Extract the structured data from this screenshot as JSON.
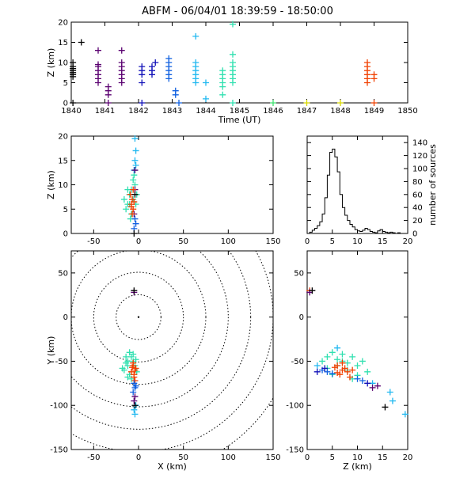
{
  "title": "ABFM - 06/04/01 18:39:59 - 18:50:00",
  "colors": {
    "black": "#000000",
    "purple": "#5a0070",
    "darkblue": "#1010b8",
    "blue": "#1060e0",
    "cyan": "#20b8f0",
    "teal": "#30e0b0",
    "green": "#40e070",
    "yellow": "#d8d800",
    "orange": "#f04000",
    "axis": "#000000"
  },
  "chart_data": [
    {
      "id": "time-height",
      "type": "scatter",
      "xlabel": "Time (UT)",
      "ylabel": "Z (km)",
      "xlim": [
        1840,
        1850
      ],
      "ylim": [
        0,
        20
      ],
      "xticks": [
        "1840",
        "1841",
        "1842",
        "1843",
        "1844",
        "1845",
        "1846",
        "1847",
        "1848",
        "1849",
        "1850"
      ],
      "yticks": [
        "0",
        "5",
        "10",
        "15",
        "20"
      ],
      "series": [
        {
          "color": "black",
          "points": [
            [
              1840.05,
              7
            ],
            [
              1840.05,
              8
            ],
            [
              1840.05,
              8.5
            ],
            [
              1840.05,
              9
            ],
            [
              1840.05,
              7.5
            ],
            [
              1840.05,
              6.5
            ],
            [
              1840.05,
              10
            ],
            [
              1840.05,
              0
            ],
            [
              1840.3,
              15
            ]
          ]
        },
        {
          "color": "purple",
          "points": [
            [
              1840.8,
              6
            ],
            [
              1840.8,
              7
            ],
            [
              1840.8,
              8
            ],
            [
              1840.8,
              9
            ],
            [
              1840.8,
              9.5
            ],
            [
              1840.8,
              5
            ],
            [
              1840.8,
              13
            ],
            [
              1841.1,
              3
            ],
            [
              1841.1,
              4
            ],
            [
              1841.1,
              2
            ],
            [
              1841.1,
              0
            ],
            [
              1841.5,
              6
            ],
            [
              1841.5,
              7
            ],
            [
              1841.5,
              8
            ],
            [
              1841.5,
              9
            ],
            [
              1841.5,
              10
            ],
            [
              1841.5,
              5
            ],
            [
              1841.5,
              13
            ]
          ]
        },
        {
          "color": "darkblue",
          "points": [
            [
              1842.1,
              7
            ],
            [
              1842.1,
              8
            ],
            [
              1842.1,
              9
            ],
            [
              1842.1,
              5
            ],
            [
              1842.1,
              0
            ],
            [
              1842.4,
              8
            ],
            [
              1842.4,
              9
            ],
            [
              1842.4,
              7
            ],
            [
              1842.5,
              10
            ]
          ]
        },
        {
          "color": "blue",
          "points": [
            [
              1842.9,
              6
            ],
            [
              1842.9,
              7
            ],
            [
              1842.9,
              8
            ],
            [
              1842.9,
              9
            ],
            [
              1842.9,
              10
            ],
            [
              1842.9,
              11
            ],
            [
              1843.1,
              3
            ],
            [
              1843.1,
              2
            ],
            [
              1843.2,
              0
            ]
          ]
        },
        {
          "color": "cyan",
          "points": [
            [
              1843.7,
              6
            ],
            [
              1843.7,
              7
            ],
            [
              1843.7,
              8
            ],
            [
              1843.7,
              9
            ],
            [
              1843.7,
              10
            ],
            [
              1843.7,
              5
            ],
            [
              1843.7,
              16.5
            ],
            [
              1844,
              5
            ],
            [
              1844,
              1
            ]
          ]
        },
        {
          "color": "teal",
          "points": [
            [
              1844.5,
              4
            ],
            [
              1844.5,
              5
            ],
            [
              1844.5,
              6
            ],
            [
              1844.5,
              7
            ],
            [
              1844.5,
              8
            ],
            [
              1844.5,
              2
            ],
            [
              1844.8,
              5
            ],
            [
              1844.8,
              6
            ],
            [
              1844.8,
              7
            ],
            [
              1844.8,
              8
            ],
            [
              1844.8,
              9
            ],
            [
              1844.8,
              10
            ],
            [
              1844.8,
              12
            ],
            [
              1844.8,
              19.5
            ],
            [
              1844.8,
              0
            ]
          ]
        },
        {
          "color": "green",
          "points": [
            [
              1846,
              0
            ]
          ]
        },
        {
          "color": "yellow",
          "points": [
            [
              1847,
              0
            ],
            [
              1848,
              0
            ]
          ]
        },
        {
          "color": "orange",
          "points": [
            [
              1848.8,
              5
            ],
            [
              1848.8,
              6
            ],
            [
              1848.8,
              7
            ],
            [
              1848.8,
              8
            ],
            [
              1848.8,
              9
            ],
            [
              1848.8,
              10
            ],
            [
              1849,
              6
            ],
            [
              1849,
              7
            ],
            [
              1849,
              0
            ]
          ]
        }
      ]
    },
    {
      "id": "x-z",
      "type": "scatter",
      "xlabel": "",
      "ylabel": "Z (km)",
      "xlim": [
        -75,
        150
      ],
      "ylim": [
        0,
        20
      ],
      "xticks": [
        "-50",
        "0",
        "50",
        "100",
        "150"
      ],
      "yticks": [
        "0",
        "5",
        "10",
        "15",
        "20"
      ],
      "series": [
        {
          "color": "teal",
          "points": [
            [
              -12,
              6
            ],
            [
              -10,
              8
            ],
            [
              -8,
              9
            ],
            [
              -6,
              7
            ],
            [
              -14,
              5
            ],
            [
              -4,
              10
            ],
            [
              -12,
              9
            ],
            [
              -8,
              4
            ],
            [
              -10,
              6
            ],
            [
              -6,
              11
            ],
            [
              -2,
              8
            ],
            [
              -16,
              7
            ],
            [
              -3,
              6
            ],
            [
              -9,
              3
            ],
            [
              -5,
              12
            ]
          ]
        },
        {
          "color": "cyan",
          "points": [
            [
              -4,
              15
            ],
            [
              -3,
              17
            ],
            [
              -4,
              19.5
            ],
            [
              -5,
              13
            ],
            [
              -3,
              14
            ]
          ]
        },
        {
          "color": "blue",
          "points": [
            [
              -4,
              3
            ],
            [
              -3,
              2
            ],
            [
              -5,
              1
            ]
          ]
        },
        {
          "color": "purple",
          "points": [
            [
              -4,
              9
            ],
            [
              -5,
              4
            ],
            [
              -4,
              13
            ]
          ]
        },
        {
          "color": "orange",
          "points": [
            [
              -8,
              6
            ],
            [
              -7,
              7
            ],
            [
              -6,
              5
            ],
            [
              -9,
              8
            ],
            [
              -5,
              6.5
            ],
            [
              -7,
              4
            ],
            [
              -6,
              9
            ],
            [
              -8,
              5.5
            ]
          ]
        },
        {
          "color": "black",
          "points": [
            [
              -4,
              8
            ],
            [
              -5,
              0
            ]
          ]
        }
      ]
    },
    {
      "id": "histogram",
      "type": "histogram",
      "ylabel": "number of sources",
      "xlim": [
        0,
        20
      ],
      "ylim": [
        0,
        150
      ],
      "xticks": [
        "0",
        "5",
        "10",
        "15",
        "20"
      ],
      "yticks": [
        "0",
        "20",
        "40",
        "60",
        "80",
        "100",
        "120",
        "140"
      ],
      "bin_width": 0.5,
      "values": [
        0,
        2,
        5,
        8,
        12,
        18,
        30,
        55,
        90,
        125,
        130,
        118,
        95,
        60,
        40,
        28,
        20,
        14,
        10,
        6,
        4,
        3,
        5,
        8,
        6,
        3,
        2,
        1,
        4,
        6,
        3,
        2,
        1,
        2,
        1,
        0,
        1,
        0,
        0,
        0
      ]
    },
    {
      "id": "plan-view",
      "type": "scatter",
      "xlabel": "X (km)",
      "ylabel": "Y (km)",
      "xlim": [
        -75,
        150
      ],
      "ylim": [
        -150,
        75
      ],
      "xticks": [
        "-50",
        "0",
        "50",
        "100",
        "150"
      ],
      "yticks": [
        "-150",
        "-100",
        "-50",
        "0",
        "50"
      ],
      "range_rings_km": [
        25,
        50,
        75,
        100,
        125,
        150,
        175
      ],
      "series": [
        {
          "color": "teal",
          "points": [
            [
              -14,
              -45
            ],
            [
              -10,
              -40
            ],
            [
              -12,
              -55
            ],
            [
              -6,
              -50
            ],
            [
              -16,
              -60
            ],
            [
              -8,
              -45
            ],
            [
              -4,
              -55
            ],
            [
              -12,
              -50
            ],
            [
              -10,
              -65
            ],
            [
              -3,
              -48
            ],
            [
              -14,
              -52
            ],
            [
              -6,
              -42
            ],
            [
              -18,
              -58
            ],
            [
              -2,
              -62
            ],
            [
              -8,
              -70
            ],
            [
              -12,
              -68
            ]
          ]
        },
        {
          "color": "orange",
          "points": [
            [
              -6,
              -55
            ],
            [
              -4,
              -60
            ],
            [
              -8,
              -62
            ],
            [
              -5,
              -65
            ],
            [
              -3,
              -58
            ],
            [
              -7,
              -57
            ],
            [
              -5,
              -68
            ],
            [
              -6,
              -52
            ],
            [
              -4,
              -72
            ]
          ]
        },
        {
          "color": "blue",
          "points": [
            [
              -5,
              -75
            ],
            [
              -4,
              -80
            ],
            [
              -6,
              -85
            ],
            [
              -3,
              -78
            ]
          ]
        },
        {
          "color": "purple",
          "points": [
            [
              -5,
              28
            ],
            [
              -4,
              -90
            ],
            [
              -5,
              -95
            ]
          ]
        },
        {
          "color": "cyan",
          "points": [
            [
              -5,
              -105
            ],
            [
              -4,
              -110
            ],
            [
              -3,
              -100
            ]
          ]
        },
        {
          "color": "black",
          "points": [
            [
              -5,
              30
            ],
            [
              -4,
              -100
            ]
          ]
        }
      ]
    },
    {
      "id": "z-y",
      "type": "scatter",
      "xlabel": "Z (km)",
      "ylabel": "",
      "xlim": [
        0,
        20
      ],
      "ylim": [
        -150,
        75
      ],
      "xticks": [
        "0",
        "5",
        "10",
        "15",
        "20"
      ],
      "yticks": [
        "-150",
        "-100",
        "-50",
        "0",
        "50"
      ],
      "series": [
        {
          "color": "teal",
          "points": [
            [
              4,
              -45
            ],
            [
              5,
              -40
            ],
            [
              6,
              -55
            ],
            [
              7,
              -50
            ],
            [
              8,
              -60
            ],
            [
              9,
              -45
            ],
            [
              10,
              -55
            ],
            [
              11,
              -50
            ],
            [
              5,
              -65
            ],
            [
              6,
              -48
            ],
            [
              7,
              -42
            ],
            [
              8,
              -52
            ],
            [
              12,
              -62
            ],
            [
              9,
              -70
            ],
            [
              10,
              -66
            ],
            [
              3,
              -50
            ],
            [
              4,
              -58
            ]
          ]
        },
        {
          "color": "cyan",
          "points": [
            [
              16.5,
              -85
            ],
            [
              17,
              -95
            ],
            [
              19.5,
              -110
            ],
            [
              13,
              -75
            ],
            [
              2,
              -55
            ],
            [
              6,
              -35
            ]
          ]
        },
        {
          "color": "orange",
          "points": [
            [
              6,
              -55
            ],
            [
              7,
              -60
            ],
            [
              8,
              -62
            ],
            [
              6.5,
              -65
            ],
            [
              7.5,
              -58
            ],
            [
              5.5,
              -57
            ],
            [
              8.5,
              -68
            ],
            [
              7,
              -52
            ],
            [
              6,
              -63
            ],
            [
              9,
              -60
            ],
            [
              0.5,
              30
            ]
          ]
        },
        {
          "color": "blue",
          "points": [
            [
              3,
              -60
            ],
            [
              4,
              -62
            ],
            [
              5,
              -64
            ],
            [
              10,
              -70
            ],
            [
              11,
              -72
            ]
          ]
        },
        {
          "color": "darkblue",
          "points": [
            [
              2,
              -62
            ],
            [
              3.5,
              -58
            ],
            [
              12,
              -75
            ]
          ]
        },
        {
          "color": "purple",
          "points": [
            [
              0.5,
              28
            ],
            [
              14,
              -78
            ],
            [
              13,
              -80
            ]
          ]
        },
        {
          "color": "black",
          "points": [
            [
              15.5,
              -102
            ],
            [
              1,
              30
            ]
          ]
        }
      ]
    }
  ]
}
